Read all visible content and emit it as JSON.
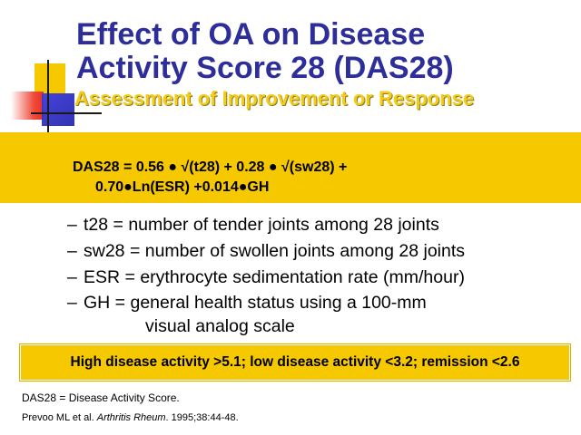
{
  "title": {
    "line1": "Effect of OA on Disease",
    "line2": "Activity Score 28 (DAS28)"
  },
  "subtitle": "Assessment of Improvement or Response",
  "formula": {
    "line1": "DAS28 = 0.56 ● √(t28) + 0.28 ● √(sw28) +",
    "line2": "0.70●Ln(ESR) +0.014●GH"
  },
  "definitions": [
    {
      "dash": "–",
      "text": "t28 = number of tender joints among 28 joints"
    },
    {
      "dash": "–",
      "text": "sw28 = number of swollen joints among 28 joints"
    },
    {
      "dash": "–",
      "text": "ESR = erythrocyte sedimentation rate (mm/hour)"
    },
    {
      "dash": "–",
      "text": "GH = general health status using a 100-mm",
      "continuation": "visual analog scale"
    }
  ],
  "activity_thresholds": "High disease activity >5.1; low disease activity <3.2; remission <2.6",
  "footnote": "DAS28 = Disease Activity Score.",
  "reference": {
    "authors": "Prevoo ML et al. ",
    "journal": "Arthritis Rheum",
    "citation": ". 1995;38:44-48."
  },
  "colors": {
    "title": "#2e2e9a",
    "subtitle": "#f3cc1a",
    "highlight_box": "#f5c800"
  }
}
